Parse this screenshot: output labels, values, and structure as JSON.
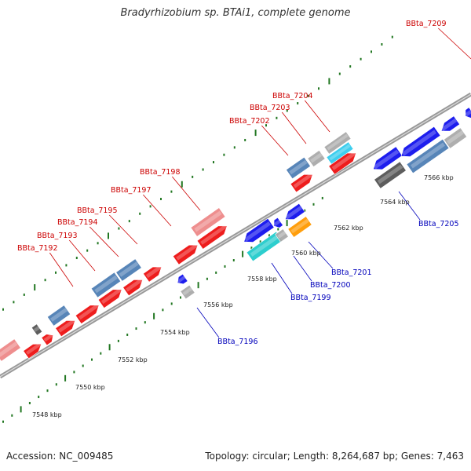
{
  "title": "Bradyrhizobium sp. BTAi1, complete genome",
  "footer": {
    "accession": "Accession: NC_009485",
    "summary": "Topology: circular; Length: 8,264,687 bp; Genes: 7,463"
  },
  "colors": {
    "red": "#ee1111",
    "pink": "#ee8888",
    "blue": "#1111ee",
    "steel": "#4f7fb5",
    "cyan": "#22cccc",
    "light_cyan": "#33ccee",
    "orange": "#ff9900",
    "gray": "#aaaaaa",
    "dark_gray": "#555555",
    "tick": "#227722",
    "backbone": "#999999",
    "top_label": "#cc0000",
    "bottom_label": "#0000bb"
  },
  "ruler": {
    "labels": [
      "7548 kbp",
      "7550 kbp",
      "7552 kbp",
      "7554 kbp",
      "7556 kbp",
      "7558 kbp",
      "7560 kbp",
      "7562 kbp",
      "7564 kbp",
      "7566 kbp"
    ]
  },
  "gene_labels": {
    "top": [
      "BBta_7192",
      "BBta_7193",
      "BBta_7194",
      "BBta_7195",
      "BBta_7197",
      "BBta_7198",
      "BBta_7202",
      "BBta_7203",
      "BBta_7204",
      "BBta_7209"
    ],
    "bottom": [
      "BBta_7196",
      "BBta_7199",
      "BBta_7200",
      "BBta_7201",
      "BBta_7205"
    ]
  }
}
